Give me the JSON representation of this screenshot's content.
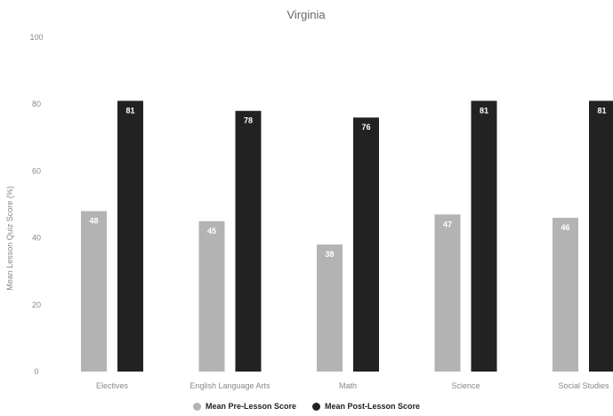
{
  "chart_data": {
    "type": "bar",
    "title": "Virginia",
    "xlabel": "",
    "ylabel": "Mean Lesson Quiz Score (%)",
    "ylim": [
      0,
      100
    ],
    "yticks": [
      0,
      20,
      40,
      60,
      80,
      100
    ],
    "categories": [
      "Electives",
      "English Language Arts",
      "Math",
      "Science",
      "Social Studies"
    ],
    "category_labels": [
      "Electives",
      "English Language Arts",
      "Math",
      "Science",
      "Social Studies"
    ],
    "series": [
      {
        "name": "Mean Pre-Lesson Score",
        "values": [
          48,
          45,
          38,
          47,
          46
        ],
        "color": "#b3b3b3"
      },
      {
        "name": "Mean Post-Lesson Score",
        "values": [
          81,
          78,
          76,
          81,
          81
        ],
        "color": "#222222"
      }
    ],
    "grid": false,
    "legend_position": "bottom"
  }
}
